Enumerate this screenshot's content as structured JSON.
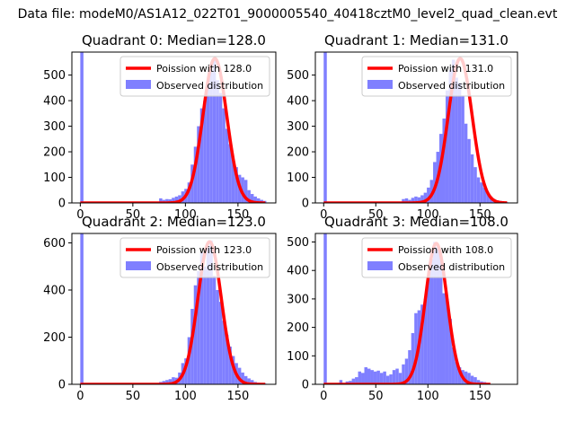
{
  "figure": {
    "suptitle": "Data file: modeM0/AS1A12_022T01_9000005540_40418cztM0_level2_quad_clean.evt"
  },
  "colors": {
    "poisson_line": "#ff0000",
    "observed_bars": "#7f7fff",
    "axes": "#000000",
    "background": "#ffffff"
  },
  "chart_data": [
    {
      "type": "bar",
      "title": "Quadrant 0: Median=128.0",
      "xlabel": "",
      "ylabel": "",
      "xlim": [
        -8,
        186
      ],
      "ylim": [
        0,
        590
      ],
      "xticks": [
        0,
        50,
        100,
        150
      ],
      "yticks": [
        0,
        100,
        200,
        300,
        400,
        500
      ],
      "legend_placement": "upper right",
      "series": [
        {
          "name": "Poission with 128.0",
          "kind": "line",
          "mu": 128.0,
          "amplitude": 565,
          "x_range": [
            0,
            176
          ]
        },
        {
          "name": "Observed distribution",
          "kind": "histogram",
          "x": [
            0,
            72,
            75,
            78,
            81,
            84,
            87,
            90,
            93,
            96,
            99,
            102,
            105,
            108,
            111,
            114,
            117,
            120,
            123,
            126,
            129,
            132,
            135,
            138,
            141,
            144,
            147,
            150,
            153,
            156,
            159,
            162,
            165,
            168,
            171,
            174
          ],
          "values": [
            590,
            0,
            18,
            12,
            15,
            14,
            20,
            25,
            30,
            45,
            55,
            80,
            150,
            220,
            300,
            370,
            400,
            470,
            520,
            560,
            480,
            430,
            370,
            290,
            230,
            170,
            140,
            110,
            100,
            90,
            50,
            35,
            25,
            18,
            12,
            8
          ]
        }
      ]
    },
    {
      "type": "bar",
      "title": "Quadrant 1: Median=131.0",
      "xlabel": "",
      "ylabel": "",
      "xlim": [
        -8,
        186
      ],
      "ylim": [
        0,
        590
      ],
      "xticks": [
        0,
        50,
        100,
        150
      ],
      "yticks": [
        0,
        100,
        200,
        300,
        400,
        500
      ],
      "legend_placement": "upper right",
      "series": [
        {
          "name": "Poission with 131.0",
          "kind": "line",
          "mu": 131.0,
          "amplitude": 565,
          "x_range": [
            0,
            176
          ]
        },
        {
          "name": "Observed distribution",
          "kind": "histogram",
          "x": [
            0,
            72,
            75,
            78,
            81,
            84,
            87,
            90,
            93,
            96,
            99,
            102,
            105,
            108,
            111,
            114,
            117,
            120,
            123,
            126,
            129,
            132,
            135,
            138,
            141,
            144,
            147,
            150,
            153,
            156,
            159,
            162,
            165,
            168,
            171,
            174
          ],
          "values": [
            590,
            0,
            15,
            18,
            12,
            20,
            25,
            22,
            30,
            40,
            60,
            90,
            160,
            200,
            270,
            330,
            440,
            520,
            560,
            490,
            470,
            420,
            310,
            250,
            190,
            140,
            100,
            80,
            60,
            40,
            25,
            15,
            10,
            8,
            5,
            3
          ]
        }
      ]
    },
    {
      "type": "bar",
      "title": "Quadrant 2: Median=123.0",
      "xlabel": "",
      "ylabel": "",
      "xlim": [
        -8,
        186
      ],
      "ylim": [
        0,
        640
      ],
      "xticks": [
        0,
        50,
        100,
        150
      ],
      "yticks": [
        0,
        200,
        400,
        600
      ],
      "legend_placement": "upper right",
      "series": [
        {
          "name": "Poission with 123.0",
          "kind": "line",
          "mu": 123.0,
          "amplitude": 605,
          "x_range": [
            0,
            176
          ]
        },
        {
          "name": "Observed distribution",
          "kind": "histogram",
          "x": [
            0,
            72,
            75,
            78,
            81,
            84,
            87,
            90,
            93,
            96,
            99,
            102,
            105,
            108,
            111,
            114,
            117,
            120,
            123,
            126,
            129,
            132,
            135,
            138,
            141,
            144,
            147,
            150,
            153,
            156,
            159,
            162,
            165,
            168,
            171,
            174
          ],
          "values": [
            640,
            0,
            10,
            14,
            18,
            22,
            30,
            28,
            50,
            90,
            110,
            200,
            320,
            420,
            480,
            560,
            500,
            580,
            610,
            460,
            400,
            350,
            270,
            210,
            160,
            120,
            90,
            70,
            50,
            35,
            25,
            18,
            10,
            7,
            5,
            3
          ]
        }
      ]
    },
    {
      "type": "bar",
      "title": "Quadrant 3: Median=108.0",
      "xlabel": "",
      "ylabel": "",
      "xlim": [
        -8,
        186
      ],
      "ylim": [
        0,
        530
      ],
      "xticks": [
        0,
        50,
        100,
        150
      ],
      "yticks": [
        0,
        100,
        200,
        300,
        400,
        500
      ],
      "legend_placement": "upper right",
      "series": [
        {
          "name": "Poission with 108.0",
          "kind": "line",
          "mu": 108.0,
          "amplitude": 495,
          "x_range": [
            0,
            160
          ]
        },
        {
          "name": "Observed distribution",
          "kind": "histogram",
          "x": [
            0,
            15,
            21,
            24,
            27,
            30,
            33,
            36,
            39,
            42,
            45,
            48,
            51,
            54,
            57,
            60,
            63,
            66,
            69,
            72,
            75,
            78,
            81,
            84,
            87,
            90,
            93,
            96,
            99,
            102,
            105,
            108,
            111,
            114,
            117,
            120,
            123,
            126,
            129,
            132,
            135,
            138,
            141,
            144,
            147,
            150,
            153,
            156
          ],
          "values": [
            530,
            15,
            10,
            12,
            20,
            25,
            45,
            40,
            60,
            55,
            50,
            45,
            48,
            40,
            45,
            30,
            35,
            50,
            55,
            40,
            70,
            90,
            120,
            180,
            250,
            260,
            280,
            300,
            380,
            440,
            500,
            480,
            450,
            320,
            300,
            230,
            130,
            80,
            60,
            50,
            45,
            40,
            30,
            25,
            15,
            10,
            8,
            5
          ]
        }
      ]
    }
  ]
}
